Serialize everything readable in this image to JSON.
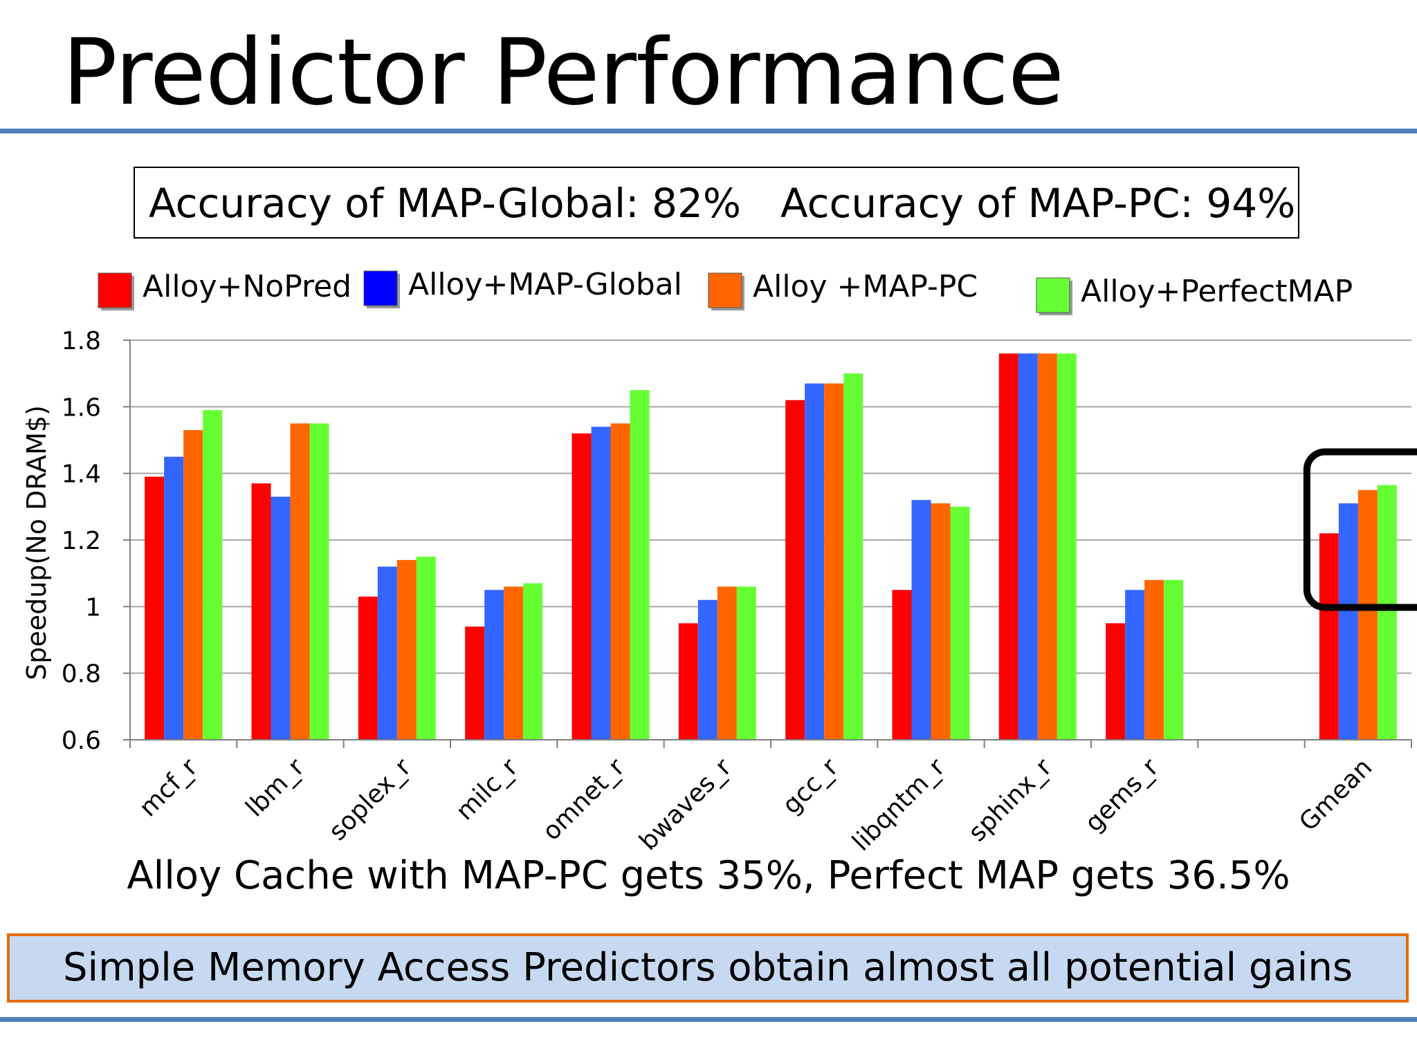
{
  "slide": {
    "title": "Predictor Performance",
    "accuracy_global": "Accuracy of MAP-Global: 82%",
    "accuracy_pc": "Accuracy of MAP-PC: 94%",
    "caption": "Alloy Cache with MAP-PC gets 35%, Perfect MAP gets 36.5%",
    "conclusion": "Simple Memory Access Predictors obtain almost all potential gains",
    "rule_color": "#4f81bd",
    "conclusion_fill": "#c6d9f1",
    "conclusion_border": "#e46c0a"
  },
  "chart_data": {
    "type": "bar",
    "title": "",
    "xlabel": "",
    "ylabel": "Speedup(No DRAM$)",
    "ylim": [
      0.6,
      1.8
    ],
    "yticks": [
      "0.6",
      "0.8",
      "1",
      "1.2",
      "1.4",
      "1.6",
      "1.8"
    ],
    "grid": true,
    "legend": "top",
    "categories": [
      "mcf_r",
      "lbm_r",
      "soplex_r",
      "milc_r",
      "omnet_r",
      "bwaves_r",
      "gcc_r",
      "libqntm_r",
      "sphinx_r",
      "gems_r",
      "",
      "Gmean"
    ],
    "series": [
      {
        "name": "Alloy+NoPred",
        "color": "#ff0000",
        "legend_color": "#ff0000",
        "values": [
          1.39,
          1.37,
          1.03,
          0.94,
          1.52,
          0.95,
          1.62,
          1.05,
          1.76,
          0.95,
          null,
          1.22
        ]
      },
      {
        "name": "Alloy+MAP-Global",
        "color": "#3366ff",
        "legend_color": "#0000ff",
        "values": [
          1.45,
          1.33,
          1.12,
          1.05,
          1.54,
          1.02,
          1.67,
          1.32,
          1.76,
          1.05,
          null,
          1.31
        ]
      },
      {
        "name": "Alloy +MAP-PC",
        "color": "#ff6600",
        "legend_color": "#ff6600",
        "values": [
          1.53,
          1.55,
          1.14,
          1.06,
          1.55,
          1.06,
          1.67,
          1.31,
          1.76,
          1.08,
          null,
          1.35
        ]
      },
      {
        "name": "Alloy+PerfectMAP",
        "color": "#66ff33",
        "legend_color": "#66ff33",
        "values": [
          1.59,
          1.55,
          1.15,
          1.07,
          1.65,
          1.06,
          1.7,
          1.3,
          1.76,
          1.08,
          null,
          1.365
        ]
      }
    ],
    "highlight": "Gmean"
  }
}
